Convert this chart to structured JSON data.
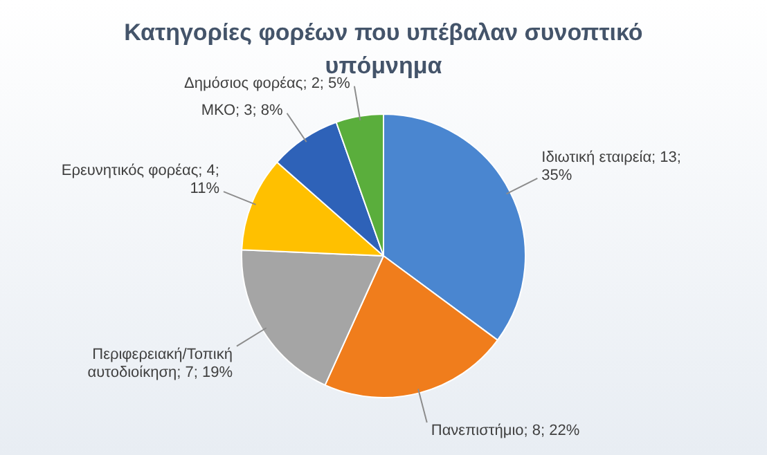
{
  "chart_data": {
    "type": "pie",
    "title": "Κατηγορίες φορέων που υπέβαλαν συνοπτικό υπόμνημα",
    "categories": [
      "Ιδιωτική εταιρεία",
      "Πανεπιστήμιο",
      "Περιφερειακή/Τοπική αυτοδιοίκηση",
      "Ερευνητικός φορέας",
      "ΜΚΟ",
      "Δημόσιος φορέας"
    ],
    "values": [
      13,
      8,
      7,
      4,
      3,
      2
    ],
    "colors": [
      "#4a86d0",
      "#f07d1c",
      "#a5a5a5",
      "#ffc000",
      "#2e62b8",
      "#5aae3c"
    ],
    "value_labels": [
      "13; 35%",
      "8; 22%",
      "7; 19%",
      "4; 11%",
      "3; 8%",
      "2; 5%"
    ],
    "legend": false
  }
}
